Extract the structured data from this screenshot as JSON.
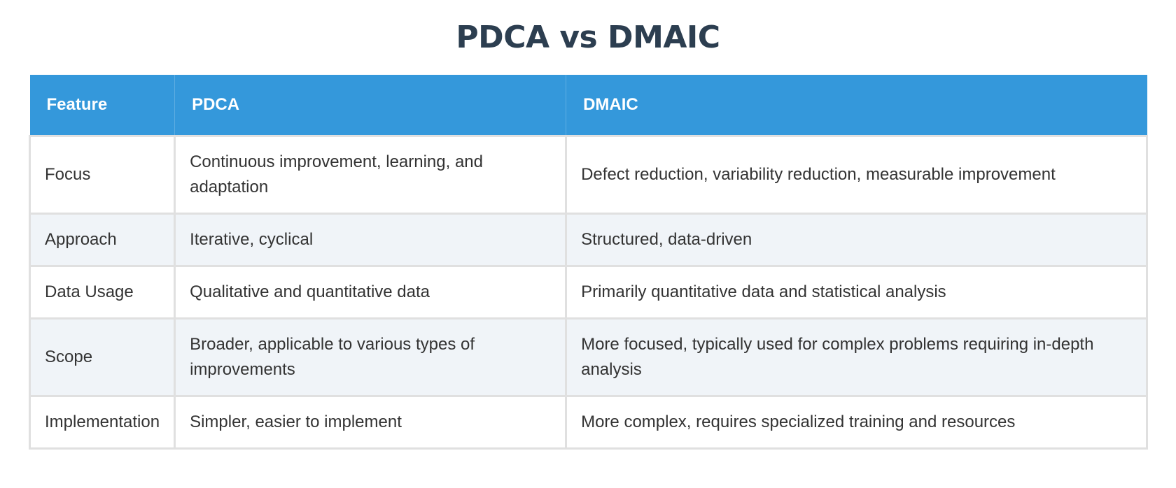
{
  "page": {
    "title": "PDCA vs DMAIC"
  },
  "colors": {
    "header_bg": "#3498db",
    "title": "#2c3e50",
    "row_alt_bg": "#f0f4f8",
    "border": "#e0e0e0"
  },
  "table": {
    "headers": [
      "Feature",
      "PDCA",
      "DMAIC"
    ],
    "rows": [
      [
        "Focus",
        "Continuous improvement, learning, and adaptation",
        "Defect reduction, variability reduction, measurable improvement"
      ],
      [
        "Approach",
        "Iterative, cyclical",
        "Structured, data-driven"
      ],
      [
        "Data Usage",
        "Qualitative and quantitative data",
        "Primarily quantitative data and statistical analysis"
      ],
      [
        "Scope",
        "Broader, applicable to various types of improvements",
        "More focused, typically used for complex problems requiring in-depth analysis"
      ],
      [
        "Implementation",
        "Simpler, easier to implement",
        "More complex, requires specialized training and resources"
      ]
    ]
  }
}
